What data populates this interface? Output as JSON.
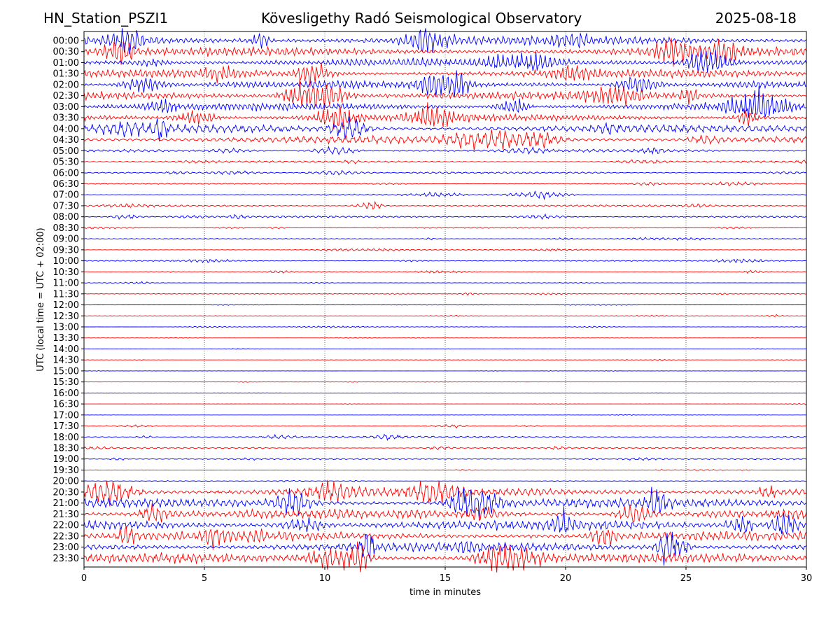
{
  "header": {
    "station": "HN_Station_PSZI1",
    "observatory": "Kövesligethy Radó Seismological Observatory",
    "date": "2025-08-18"
  },
  "chart_data": {
    "type": "line",
    "title": "Kövesligethy Radó Seismological Observatory",
    "xlabel": "time in minutes",
    "ylabel": "UTC (local time = UTC + 02:00)",
    "xlim": [
      0,
      30
    ],
    "xticks": [
      0,
      5,
      10,
      15,
      20,
      25,
      30
    ],
    "grid": "vertical dotted lines at 5-minute intervals",
    "row_labels": [
      "00:00",
      "00:30",
      "01:00",
      "01:30",
      "02:00",
      "02:30",
      "03:00",
      "03:30",
      "04:00",
      "04:30",
      "05:00",
      "05:30",
      "06:00",
      "06:30",
      "07:00",
      "07:30",
      "08:00",
      "08:30",
      "09:00",
      "09:30",
      "10:00",
      "10:30",
      "11:00",
      "11:30",
      "12:00",
      "12:30",
      "13:00",
      "13:30",
      "14:00",
      "14:30",
      "15:00",
      "15:30",
      "16:00",
      "16:30",
      "17:00",
      "17:30",
      "18:00",
      "18:30",
      "19:00",
      "19:30",
      "20:00",
      "20:30",
      "21:00",
      "21:30",
      "22:00",
      "22:30",
      "23:00",
      "23:30"
    ],
    "trace_colors": [
      "#0000ff",
      "#ff0000"
    ],
    "relative_amplitude": [
      1.0,
      0.9,
      0.9,
      0.85,
      0.85,
      0.85,
      0.8,
      0.8,
      0.85,
      0.8,
      0.3,
      0.2,
      0.18,
      0.12,
      0.15,
      0.2,
      0.2,
      0.12,
      0.1,
      0.1,
      0.12,
      0.1,
      0.06,
      0.08,
      0.05,
      0.05,
      0.06,
      0.03,
      0.03,
      0.04,
      0.03,
      0.03,
      0.02,
      0.02,
      0.03,
      0.08,
      0.2,
      0.15,
      0.15,
      0.05,
      0.05,
      1.0,
      1.0,
      1.0,
      1.0,
      1.0,
      1.0,
      1.0
    ]
  }
}
